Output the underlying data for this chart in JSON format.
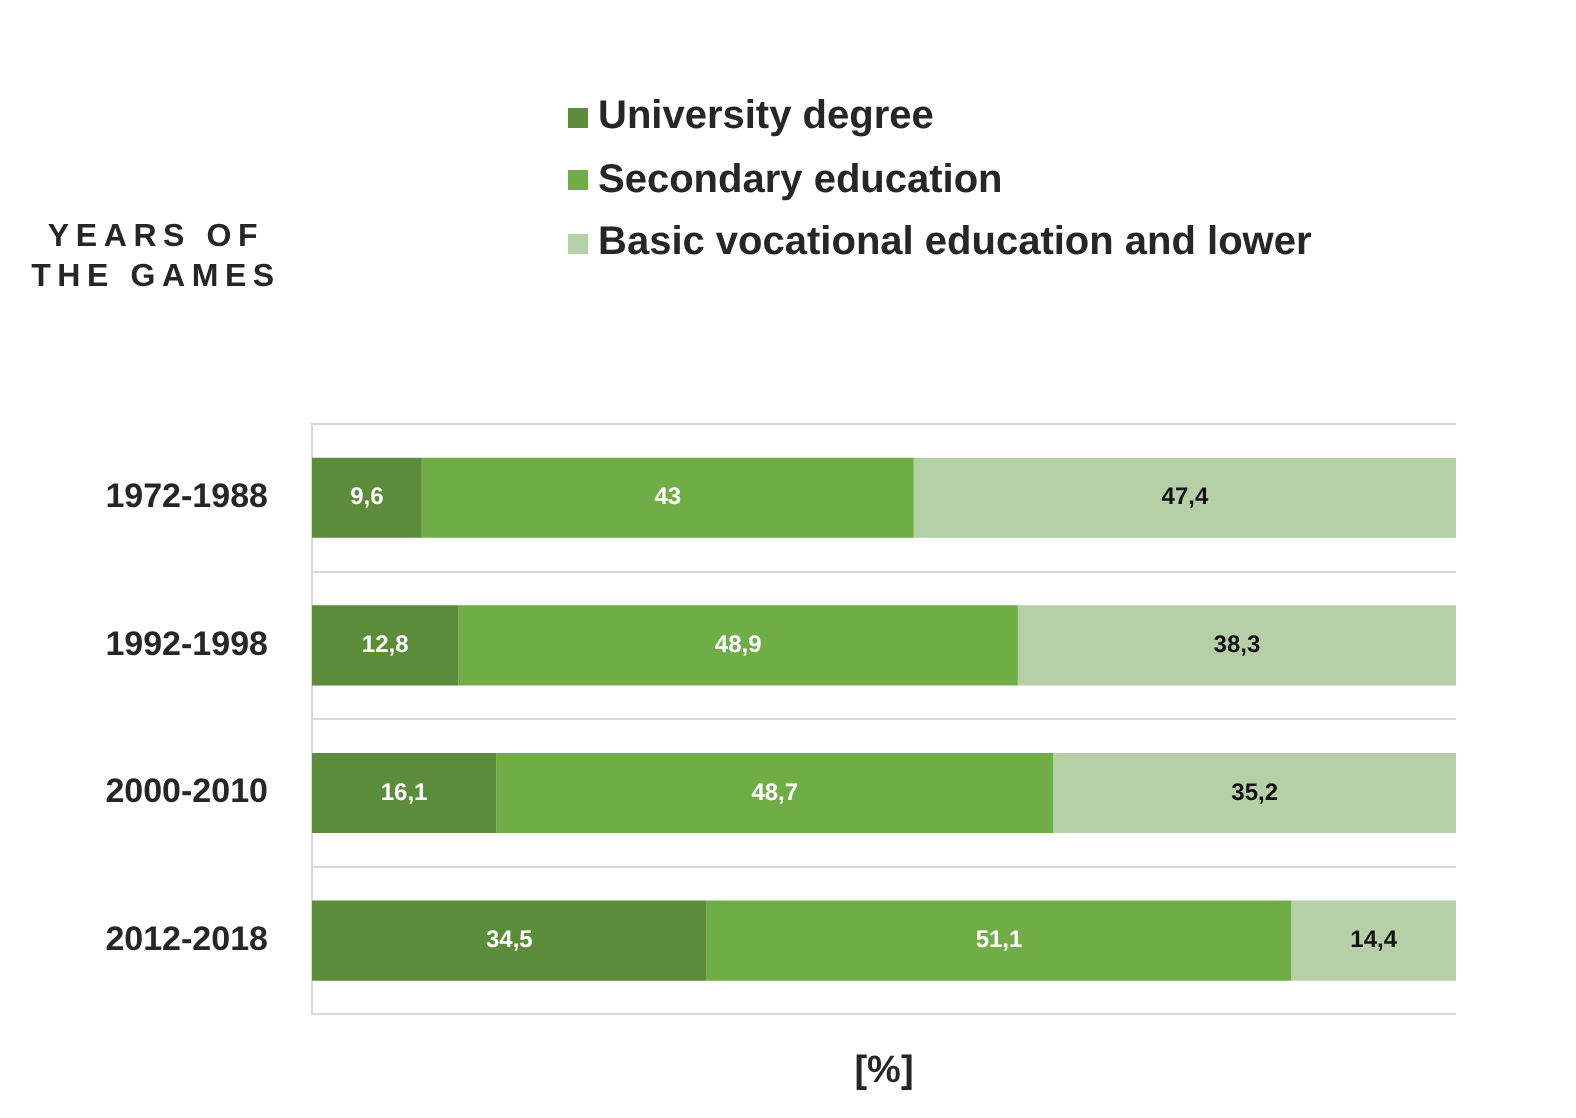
{
  "chart_data": {
    "type": "bar",
    "orientation": "horizontal",
    "stacked": true,
    "xlabel": "[%]",
    "annotations": [
      "YEARS OF THE GAMES"
    ],
    "categories": [
      "1972-1988",
      "1992-1998",
      "2000-2010",
      "2012-2018"
    ],
    "series": [
      {
        "name": "University degree",
        "color": "#5b8c39",
        "values": [
          9.6,
          12.8,
          16.1,
          34.5
        ],
        "value_labels": [
          "9,6",
          "12,8",
          "16,1",
          "34,5"
        ]
      },
      {
        "name": "Secondary education",
        "color": "#70ad47",
        "values": [
          43,
          48.9,
          48.7,
          51.1
        ],
        "value_labels": [
          "43",
          "48,9",
          "48,7",
          "51,1"
        ]
      },
      {
        "name": "Basic vocational education and lower",
        "color": "#b5cfa7",
        "values": [
          47.4,
          38.3,
          35.2,
          14.4
        ],
        "value_labels": [
          "47,4",
          "38,3",
          "35,2",
          "14,4"
        ]
      }
    ],
    "xlim": [
      0,
      100
    ],
    "tick_labels": "y",
    "legend": "top",
    "grid": "y"
  }
}
